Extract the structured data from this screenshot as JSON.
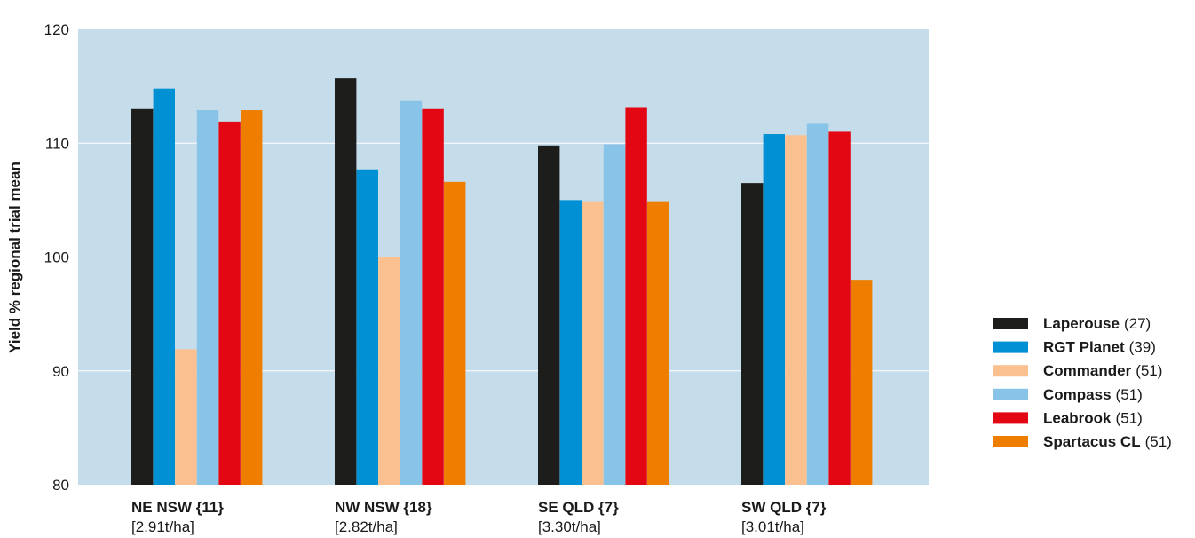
{
  "chart_data": {
    "type": "bar",
    "ylabel": "Yield % regional trial mean",
    "ylim": [
      80,
      120
    ],
    "yticks": [
      80,
      90,
      100,
      110,
      120
    ],
    "grid": true,
    "legend_position": "right",
    "plot_background": "#c5dcea",
    "categories": [
      {
        "name": "NE NSW {11}",
        "sub": "[2.91t/ha]"
      },
      {
        "name": "NW NSW {18}",
        "sub": "[2.82t/ha]"
      },
      {
        "name": "SE QLD {7}",
        "sub": "[3.30t/ha]"
      },
      {
        "name": "SW QLD {7}",
        "sub": "[3.01t/ha]"
      }
    ],
    "series": [
      {
        "name": "Laperouse",
        "note": "(27)",
        "color": "#1d1d1b",
        "values": [
          113,
          115.7,
          109.8,
          106.5
        ]
      },
      {
        "name": "RGT Planet",
        "note": "(39)",
        "color": "#0090d4",
        "values": [
          114.8,
          107.7,
          105,
          110.8
        ]
      },
      {
        "name": "Commander",
        "note": "(51)",
        "color": "#fbc08f",
        "values": [
          91.9,
          100,
          104.9,
          110.7
        ]
      },
      {
        "name": "Compass",
        "note": "(51)",
        "color": "#88c3e8",
        "values": [
          112.9,
          113.7,
          109.9,
          111.7
        ]
      },
      {
        "name": "Leabrook",
        "note": "(51)",
        "color": "#e30613",
        "values": [
          111.9,
          113,
          113.1,
          111
        ]
      },
      {
        "name": "Spartacus CL",
        "note": "(51)",
        "color": "#ee7d00",
        "values": [
          112.9,
          106.6,
          104.9,
          98
        ]
      }
    ]
  }
}
